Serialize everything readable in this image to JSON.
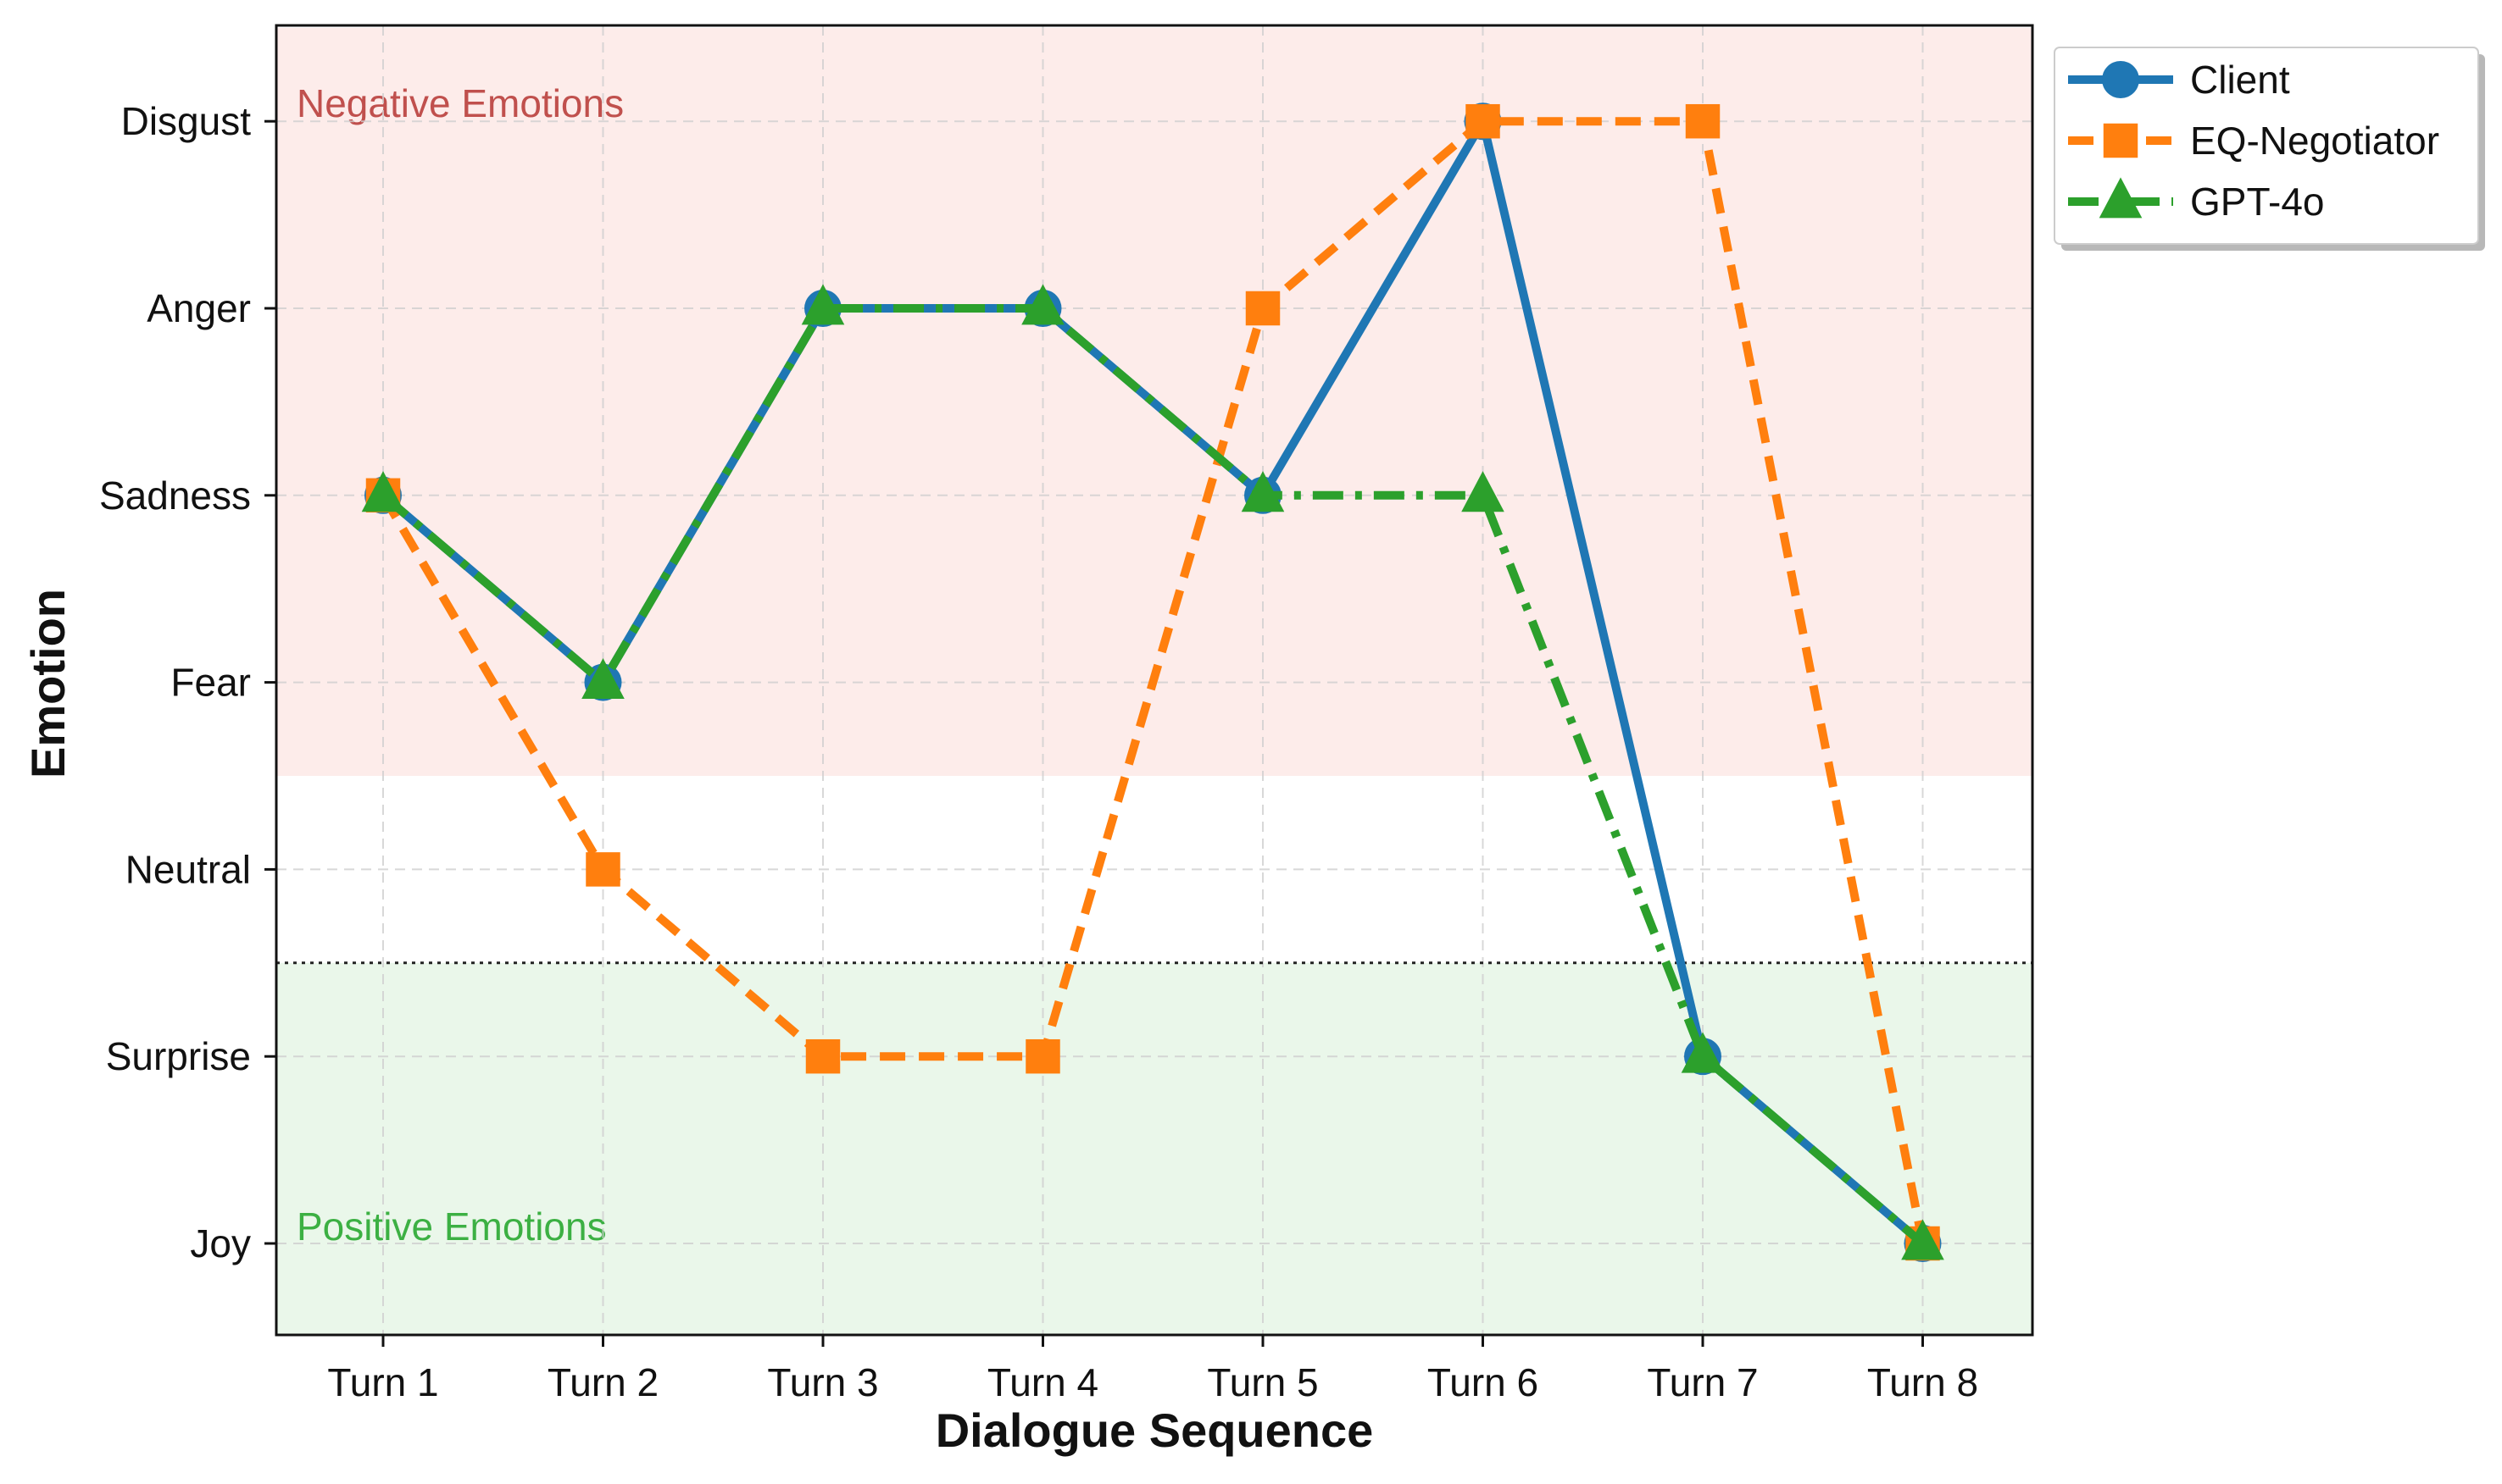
{
  "chart_data": {
    "type": "line",
    "xlabel": "Dialogue Sequence",
    "ylabel": "Emotion",
    "categories": [
      "Turn 1",
      "Turn 2",
      "Turn 3",
      "Turn 4",
      "Turn 5",
      "Turn 6",
      "Turn 7",
      "Turn 8"
    ],
    "y_categories": [
      "Joy",
      "Surprise",
      "Neutral",
      "Fear",
      "Sadness",
      "Anger",
      "Disgust"
    ],
    "ylim": [
      -0.5,
      6.5
    ],
    "grid": true,
    "legend_position": "outside-top-right",
    "regions": [
      {
        "label": "Negative Emotions",
        "from": 2.5,
        "to": 6.5,
        "fill": "#fdecea",
        "label_color": "#c0504d"
      },
      {
        "label": "Positive Emotions",
        "from": -0.5,
        "to": 1.5,
        "fill": "#eaf7ea",
        "label_color": "#3cb043"
      }
    ],
    "divider_y": 1.5,
    "series": [
      {
        "name": "Client",
        "values": [
          "Sadness",
          "Fear",
          "Anger",
          "Anger",
          "Sadness",
          "Disgust",
          "Surprise",
          "Joy"
        ],
        "color": "#1f77b4",
        "marker": "circle",
        "linestyle": "solid"
      },
      {
        "name": "EQ-Negotiator",
        "values": [
          "Sadness",
          "Neutral",
          "Surprise",
          "Surprise",
          "Anger",
          "Disgust",
          "Disgust",
          "Joy"
        ],
        "color": "#ff7f0e",
        "marker": "square",
        "linestyle": "dashed"
      },
      {
        "name": "GPT-4o",
        "values": [
          "Sadness",
          "Fear",
          "Anger",
          "Anger",
          "Sadness",
          "Sadness",
          "Surprise",
          "Joy"
        ],
        "color": "#2ca02c",
        "marker": "triangle",
        "linestyle": "dashdot"
      }
    ]
  }
}
